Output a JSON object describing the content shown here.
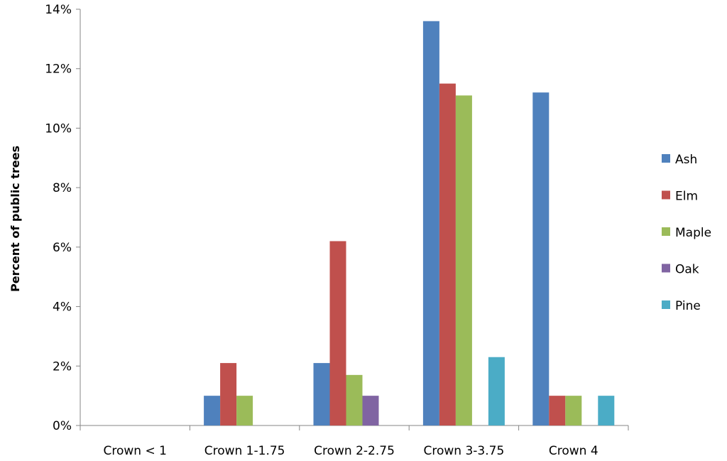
{
  "chart_data": {
    "type": "bar",
    "title": "",
    "xlabel": "",
    "ylabel": "Percent of public trees",
    "ylim": [
      0,
      14
    ],
    "yticks": [
      "0%",
      "2%",
      "4%",
      "6%",
      "8%",
      "10%",
      "12%",
      "14%"
    ],
    "ytick_values": [
      0,
      2,
      4,
      6,
      8,
      10,
      12,
      14
    ],
    "grid": false,
    "legend_position": "right",
    "categories": [
      "Crown < 1",
      "Crown 1-1.75",
      "Crown 2-2.75",
      "Crown 3-3.75",
      "Crown 4"
    ],
    "series": [
      {
        "name": "Ash",
        "color": "#4F81BD",
        "values": [
          0,
          1.0,
          2.1,
          13.6,
          11.2
        ]
      },
      {
        "name": "Elm",
        "color": "#C0504D",
        "values": [
          0,
          2.1,
          6.2,
          11.5,
          1.0
        ]
      },
      {
        "name": "Maple",
        "color": "#9BBB59",
        "values": [
          0,
          1.0,
          1.7,
          11.1,
          1.0
        ]
      },
      {
        "name": "Oak",
        "color": "#8064A2",
        "values": [
          0,
          0,
          1.0,
          0,
          0
        ]
      },
      {
        "name": "Pine",
        "color": "#4BACC6",
        "values": [
          0,
          0,
          0,
          2.3,
          1.0
        ]
      }
    ]
  }
}
